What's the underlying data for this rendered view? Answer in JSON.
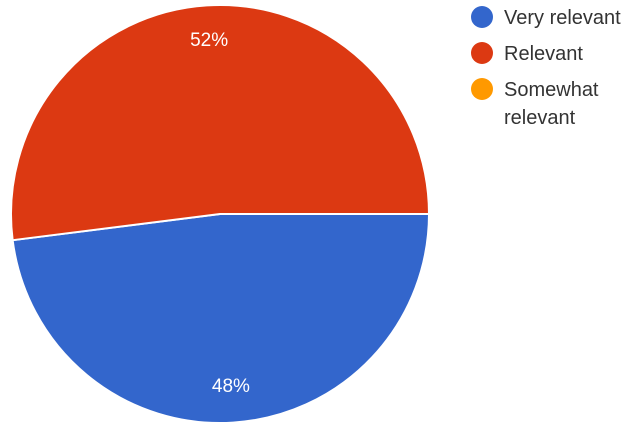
{
  "chart_data": {
    "type": "pie",
    "categories": [
      "Very relevant",
      "Relevant",
      "Somewhat relevant"
    ],
    "values": [
      48,
      52,
      0
    ],
    "data_labels": [
      "48%",
      "52%",
      ""
    ],
    "colors": [
      "#3366cc",
      "#dc3912",
      "#ff9900"
    ],
    "legend_position": "right",
    "start": "right (3 o'clock), slices proceed clockwise"
  },
  "legend": {
    "items": [
      {
        "label": "Very relevant",
        "color": "#3366cc"
      },
      {
        "label": "Relevant",
        "color": "#dc3912"
      },
      {
        "label": "Somewhat relevant",
        "color": "#ff9900"
      }
    ]
  }
}
